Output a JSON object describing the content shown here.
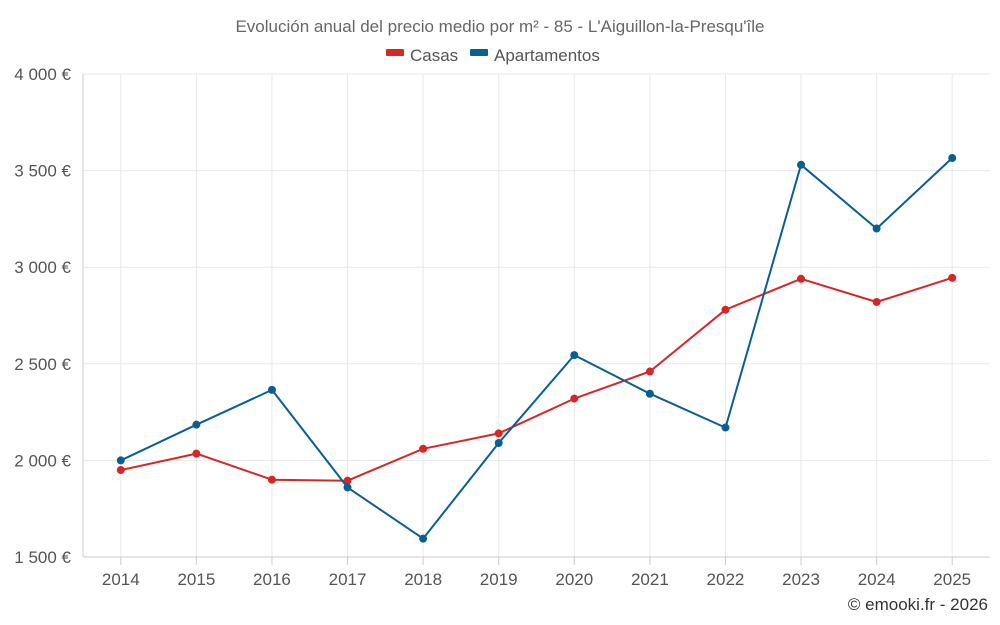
{
  "chart_data": {
    "type": "line",
    "title": "Evolución anual del precio medio por m² - 85 - L'Aiguillon-la-Presqu'île",
    "categories": [
      "2014",
      "2015",
      "2016",
      "2017",
      "2018",
      "2019",
      "2020",
      "2021",
      "2022",
      "2023",
      "2024",
      "2025"
    ],
    "series": [
      {
        "name": "Casas",
        "color": "#d62728",
        "values": [
          1950,
          2035,
          1900,
          1895,
          2060,
          2140,
          2320,
          2460,
          2780,
          2940,
          2820,
          2945
        ]
      },
      {
        "name": "Apartamentos",
        "color": "#0a5f92",
        "values": [
          2000,
          2185,
          2365,
          1860,
          1595,
          2090,
          2545,
          2345,
          2170,
          3530,
          3200,
          3565
        ]
      }
    ],
    "ylim": [
      1500,
      4000
    ],
    "yticks": [
      1500,
      2000,
      2500,
      3000,
      3500,
      4000
    ],
    "ytick_labels": [
      "1 500 €",
      "2 000 €",
      "2 500 €",
      "3 000 €",
      "3 500 €",
      "4 000 €"
    ],
    "grid": true,
    "legend_position": "top-center"
  },
  "credit": "© emooki.fr - 2026"
}
